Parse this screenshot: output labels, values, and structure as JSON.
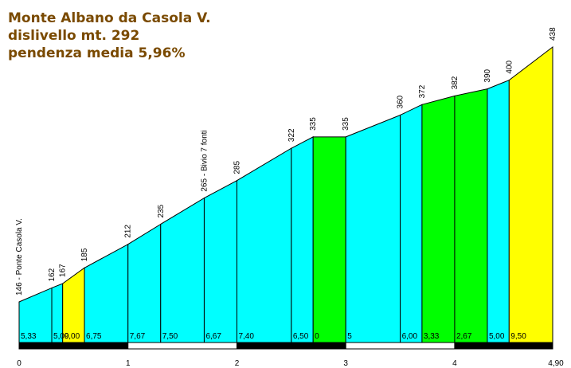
{
  "chart_data": {
    "type": "area",
    "title": "Monte Albano da Casola V.",
    "subtitle_lines": [
      "dislivello mt. 292",
      "pendenza media 5,96%"
    ],
    "xlabel": "",
    "ylabel": "",
    "x_unit": "km",
    "xlim": [
      0,
      4.9
    ],
    "ylim": [
      146,
      438
    ],
    "x_tick_labels": [
      {
        "x": 0,
        "label": "0"
      },
      {
        "x": 1,
        "label": "1"
      },
      {
        "x": 2,
        "label": "2"
      },
      {
        "x": 3,
        "label": "3"
      },
      {
        "x": 4,
        "label": "4"
      },
      {
        "x": 4.9,
        "label": "4,90"
      }
    ],
    "points": [
      {
        "x": 0.0,
        "y": 146,
        "label": "146 - Ponte Casola V."
      },
      {
        "x": 0.3,
        "y": 162,
        "label": "162"
      },
      {
        "x": 0.4,
        "y": 167,
        "label": "167"
      },
      {
        "x": 0.6,
        "y": 185,
        "label": "185"
      },
      {
        "x": 1.0,
        "y": 212,
        "label": "212"
      },
      {
        "x": 1.3,
        "y": 235,
        "label": "235"
      },
      {
        "x": 1.7,
        "y": 265,
        "label": "265 - Bivio 7 fonti"
      },
      {
        "x": 2.0,
        "y": 285,
        "label": "285"
      },
      {
        "x": 2.5,
        "y": 322,
        "label": "322"
      },
      {
        "x": 2.7,
        "y": 335,
        "label": "335"
      },
      {
        "x": 3.0,
        "y": 335,
        "label": "335"
      },
      {
        "x": 3.5,
        "y": 360,
        "label": "360"
      },
      {
        "x": 3.7,
        "y": 372,
        "label": "372"
      },
      {
        "x": 4.0,
        "y": 382,
        "label": "382"
      },
      {
        "x": 4.3,
        "y": 390,
        "label": "390"
      },
      {
        "x": 4.5,
        "y": 400,
        "label": "400"
      },
      {
        "x": 4.9,
        "y": 438,
        "label": "438"
      }
    ],
    "segments": [
      {
        "gradient": "5,33",
        "color": "#00ffff"
      },
      {
        "gradient": "5,00",
        "color": "#00ffff"
      },
      {
        "gradient": "9,00",
        "color": "#ffff00"
      },
      {
        "gradient": "6,75",
        "color": "#00ffff"
      },
      {
        "gradient": "7,67",
        "color": "#00ffff"
      },
      {
        "gradient": "7,50",
        "color": "#00ffff"
      },
      {
        "gradient": "6,67",
        "color": "#00ffff"
      },
      {
        "gradient": "7,40",
        "color": "#00ffff"
      },
      {
        "gradient": "6,50",
        "color": "#00ffff"
      },
      {
        "gradient": "0",
        "color": "#00ff00"
      },
      {
        "gradient": "5",
        "color": "#00ffff"
      },
      {
        "gradient": "6,00",
        "color": "#00ffff"
      },
      {
        "gradient": "3,33",
        "color": "#00ff00"
      },
      {
        "gradient": "2,67",
        "color": "#00ff00"
      },
      {
        "gradient": "5,00",
        "color": "#00ffff"
      },
      {
        "gradient": "9,50",
        "color": "#ffff00"
      }
    ],
    "km_bar_colors": [
      "#000000",
      "#ffffff"
    ]
  }
}
